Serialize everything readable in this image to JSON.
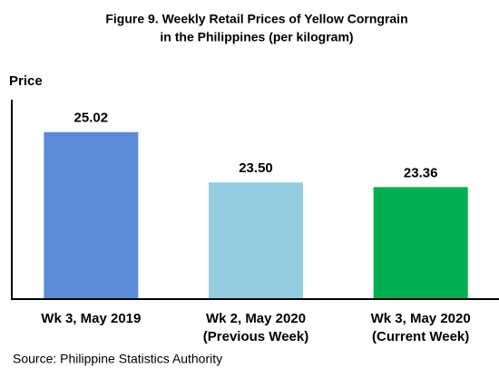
{
  "chart_data": {
    "type": "bar",
    "title": [
      "Figure 9. Weekly Retail Prices of Yellow Corngrain",
      "in the Philippines (per kilogram)"
    ],
    "y_label": "Price",
    "categories": [
      [
        "Wk 3, May 2019"
      ],
      [
        "Wk 2, May 2020",
        "(Previous Week)"
      ],
      [
        "Wk 3, May 2020",
        "(Current Week)"
      ]
    ],
    "values": [
      25.02,
      23.5,
      23.36
    ],
    "value_labels": [
      "25.02",
      "23.50",
      "23.36"
    ],
    "colors": [
      "#5b8bd6",
      "#93cddf",
      "#00b050"
    ],
    "ylim": [
      20,
      26
    ],
    "source": "Source: Philippine Statistics Authority"
  }
}
